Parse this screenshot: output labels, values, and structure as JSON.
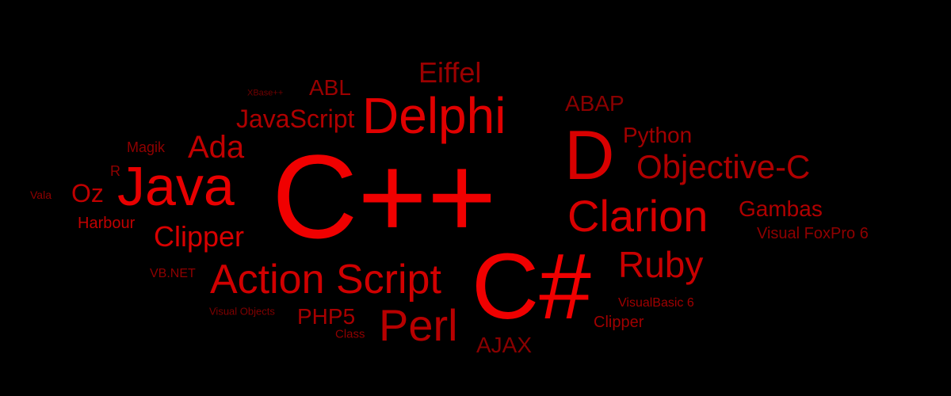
{
  "words": [
    {
      "text": "C++",
      "color": "#f00000"
    },
    {
      "text": "C#",
      "color": "#f00000"
    },
    {
      "text": "Delphi",
      "color": "#e00000"
    },
    {
      "text": "Java",
      "color": "#e80000"
    },
    {
      "text": "D",
      "color": "#d80000"
    },
    {
      "text": "Clarion",
      "color": "#d80000"
    },
    {
      "text": "Action Script",
      "color": "#d00000"
    },
    {
      "text": "Objective-C",
      "color": "#b00000"
    },
    {
      "text": "Perl",
      "color": "#b80000"
    },
    {
      "text": "Ruby",
      "color": "#c80000"
    },
    {
      "text": "Ada",
      "color": "#c00000"
    },
    {
      "text": "Clipper",
      "color": "#d80000"
    },
    {
      "text": "Eiffel",
      "color": "#9a0000"
    },
    {
      "text": "JavaScript",
      "color": "#b00000"
    },
    {
      "text": "Oz",
      "color": "#c00000"
    },
    {
      "text": "ABL",
      "color": "#9a0000"
    },
    {
      "text": "ABAP",
      "color": "#8a0000"
    },
    {
      "text": "Python",
      "color": "#a00000"
    },
    {
      "text": "Gambas",
      "color": "#b00000"
    },
    {
      "text": "Visual FoxPro 6",
      "color": "#900000"
    },
    {
      "text": "PHP5",
      "color": "#a80000"
    },
    {
      "text": "AJAX",
      "color": "#8a0000"
    },
    {
      "text": "Harbour",
      "color": "#c00000"
    },
    {
      "text": "Magik",
      "color": "#900000"
    },
    {
      "text": "R",
      "color": "#900000"
    },
    {
      "text": "Vala",
      "color": "#900000"
    },
    {
      "text": "VB.NET",
      "color": "#900000"
    },
    {
      "text": "Visual Objects",
      "color": "#800000"
    },
    {
      "text": "Class",
      "color": "#900000"
    },
    {
      "text": "XBase++",
      "color": "#700000"
    },
    {
      "text": "VisualBasic 6",
      "color": "#a00000"
    },
    {
      "text": "Clipper",
      "color": "#a00000"
    }
  ]
}
